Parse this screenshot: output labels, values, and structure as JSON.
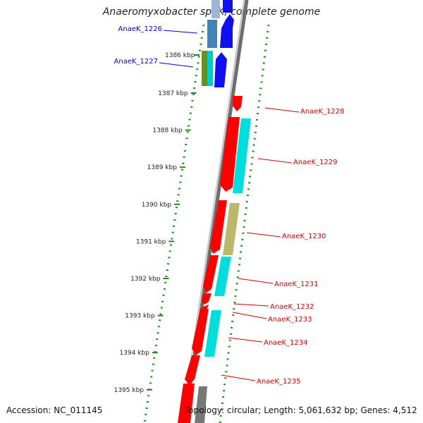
{
  "title": "Anaeromyxobacter sp. K, complete genome",
  "footer": {
    "accession": "Accession: NC_011145",
    "summary": "Topology: circular; Length: 5,061,632 bp; Genes: 4,512"
  },
  "colors": {
    "backbone": "#8a8a8a",
    "tick": "#228822",
    "label_blue": "#0000cc",
    "label_red": "#cc0000"
  },
  "scale_ticks": [
    {
      "label": "1387 kbp"
    },
    {
      "label": "1388 kbp"
    },
    {
      "label": "1389 kbp"
    },
    {
      "label": "1390 kbp"
    },
    {
      "label": "1391 kbp"
    },
    {
      "label": "1392 kbp"
    },
    {
      "label": "1393 kbp"
    },
    {
      "label": "1394 kbp"
    },
    {
      "label": "1395 kbp"
    }
  ],
  "genes": [
    {
      "id": "AnaeK_1226",
      "color": "blue"
    },
    {
      "id": "AnaeK_1227",
      "color": "blue"
    },
    {
      "id": "AnaeK_1228",
      "color": "red"
    },
    {
      "id": "AnaeK_1229",
      "color": "red"
    },
    {
      "id": "AnaeK_1230",
      "color": "red"
    },
    {
      "id": "AnaeK_1231",
      "color": "red"
    },
    {
      "id": "AnaeK_1232",
      "color": "red"
    },
    {
      "id": "AnaeK_1233",
      "color": "red"
    },
    {
      "id": "AnaeK_1234",
      "color": "red"
    },
    {
      "id": "AnaeK_1235",
      "color": "red"
    }
  ],
  "extra_tick": "1386 kbp"
}
